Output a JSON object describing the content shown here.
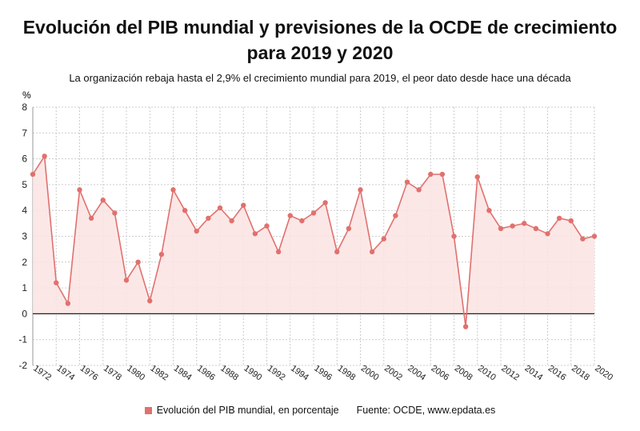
{
  "header": {
    "title_line1": "Evolución del PIB mundial y previsiones de la OCDE de crecimiento",
    "title_line2": "para 2019 y 2020",
    "subtitle": "La organización rebaja hasta el 2,9% el crecimiento mundial para 2019, el peor dato desde hace una década"
  },
  "legend": {
    "series_label": "Evolución del PIB mundial, en porcentaje",
    "source": "Fuente: OCDE, www.epdata.es"
  },
  "chart_data": {
    "type": "area",
    "title": "Evolución del PIB mundial y previsiones de la OCDE de crecimiento para 2019 y 2020",
    "subtitle": "La organización rebaja hasta el 2,9% el crecimiento mundial para 2019, el peor dato desde hace una década",
    "ylabel": "%",
    "xlim": [
      1972,
      2020
    ],
    "ylim": [
      -2,
      8
    ],
    "yticks": [
      -2,
      -1,
      0,
      1,
      2,
      3,
      4,
      5,
      6,
      7,
      8
    ],
    "xticks": [
      1972,
      1974,
      1976,
      1978,
      1980,
      1982,
      1984,
      1986,
      1988,
      1990,
      1992,
      1994,
      1996,
      1998,
      2000,
      2002,
      2004,
      2006,
      2008,
      2010,
      2012,
      2014,
      2016,
      2018,
      2020
    ],
    "grid": true,
    "legend_position": "bottom",
    "colors": {
      "line": "#e0716e",
      "area": "#fbe3e3",
      "zero": "#222222",
      "grid": "#cccccc"
    },
    "series": [
      {
        "name": "Evolución del PIB mundial, en porcentaje",
        "x": [
          1972,
          1973,
          1974,
          1975,
          1976,
          1977,
          1978,
          1979,
          1980,
          1981,
          1982,
          1983,
          1984,
          1985,
          1986,
          1987,
          1988,
          1989,
          1990,
          1991,
          1992,
          1993,
          1994,
          1995,
          1996,
          1997,
          1998,
          1999,
          2000,
          2001,
          2002,
          2003,
          2004,
          2005,
          2006,
          2007,
          2008,
          2009,
          2010,
          2011,
          2012,
          2013,
          2014,
          2015,
          2016,
          2017,
          2018,
          2019,
          2020
        ],
        "values": [
          5.4,
          6.1,
          1.2,
          0.4,
          4.8,
          3.7,
          4.4,
          3.9,
          1.3,
          2.0,
          0.5,
          2.3,
          4.8,
          4.0,
          3.2,
          3.7,
          4.1,
          3.6,
          4.2,
          3.1,
          3.4,
          2.4,
          3.8,
          3.6,
          3.9,
          4.3,
          2.4,
          3.3,
          4.8,
          2.4,
          2.9,
          3.8,
          5.1,
          4.8,
          5.4,
          5.4,
          3.0,
          -0.5,
          5.3,
          4.0,
          3.3,
          3.4,
          3.5,
          3.3,
          3.1,
          3.7,
          3.6,
          2.9,
          3.0
        ]
      }
    ]
  }
}
